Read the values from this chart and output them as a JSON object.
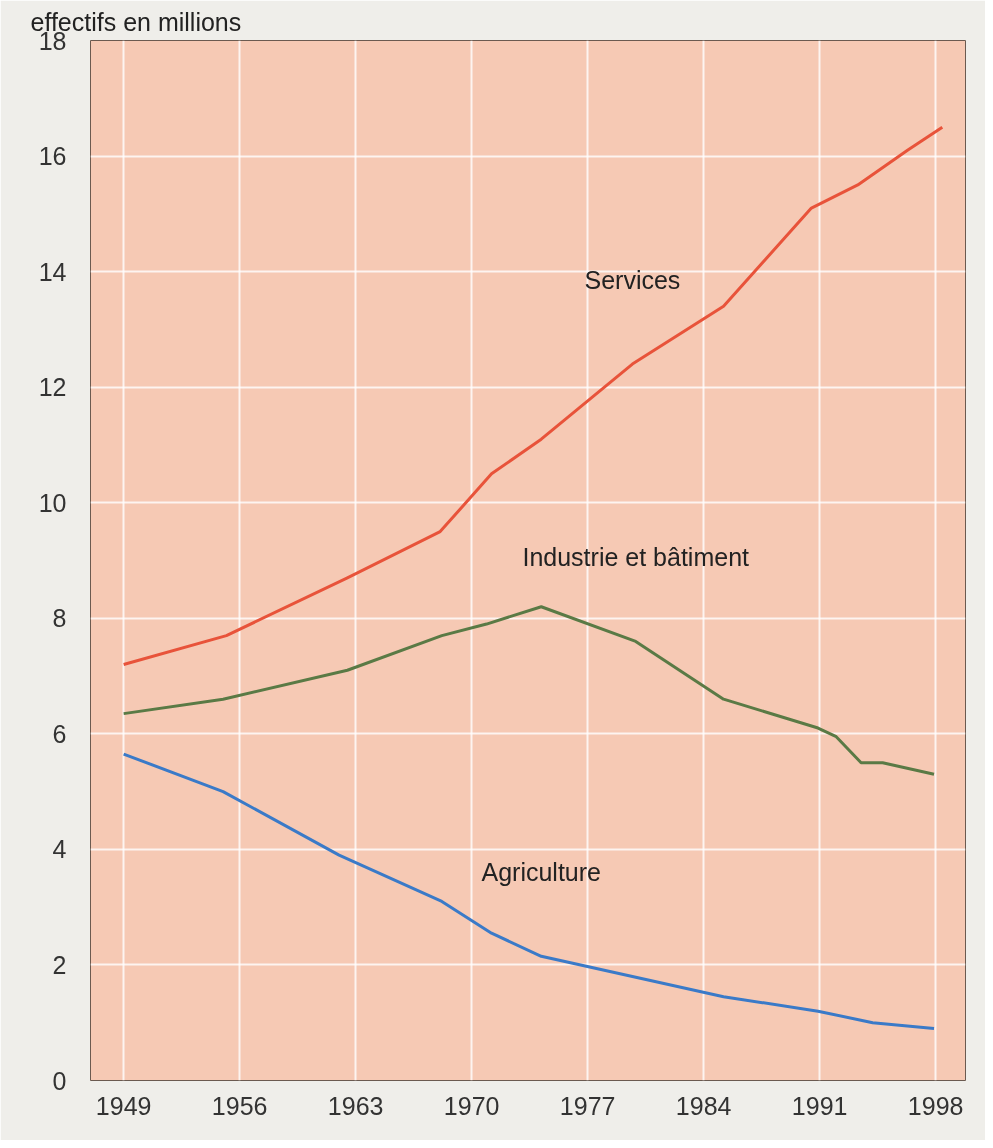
{
  "chart_data": {
    "type": "line",
    "ylabel": "effectifs en millions",
    "xlim": [
      1947,
      1999.8
    ],
    "xticks": [
      1949,
      1956,
      1963,
      1970,
      1977,
      1984,
      1991,
      1998
    ],
    "ylim": [
      0,
      18
    ],
    "yticks": [
      0,
      2,
      4,
      6,
      8,
      10,
      12,
      14,
      16,
      18
    ],
    "grid": true,
    "legend": false,
    "series": [
      {
        "name": "Services",
        "color": "#e8533a",
        "x": [
          1949,
          1955.2,
          1962.5,
          1968.1,
          1971.2,
          1974.2,
          1979.7,
          1985.2,
          1990.5,
          1993.3,
          1996.3,
          1998.4
        ],
        "values": [
          7.2,
          7.7,
          8.7,
          9.5,
          10.5,
          11.1,
          12.4,
          13.4,
          15.1,
          15.5,
          16.1,
          16.5
        ]
      },
      {
        "name": "Industrie et bâtiment",
        "color": "#5a7a45",
        "x": [
          1949,
          1955,
          1962.5,
          1968.2,
          1970.9,
          1974.2,
          1979.9,
          1985.2,
          1990.9,
          1992,
          1993.5,
          1994.8,
          1997.9
        ],
        "values": [
          6.35,
          6.6,
          7.1,
          7.7,
          7.9,
          8.2,
          7.6,
          6.6,
          6.1,
          5.95,
          5.5,
          5.5,
          5.3
        ]
      },
      {
        "name": "Agriculture",
        "color": "#3a7ac8",
        "x": [
          1949,
          1955,
          1962,
          1968.2,
          1971.2,
          1974.2,
          1979.7,
          1985.2,
          1990.9,
          1994.2,
          1997.9
        ],
        "values": [
          5.65,
          5.0,
          3.9,
          3.1,
          2.55,
          2.15,
          1.8,
          1.45,
          1.2,
          1.0,
          0.9
        ]
      }
    ]
  }
}
